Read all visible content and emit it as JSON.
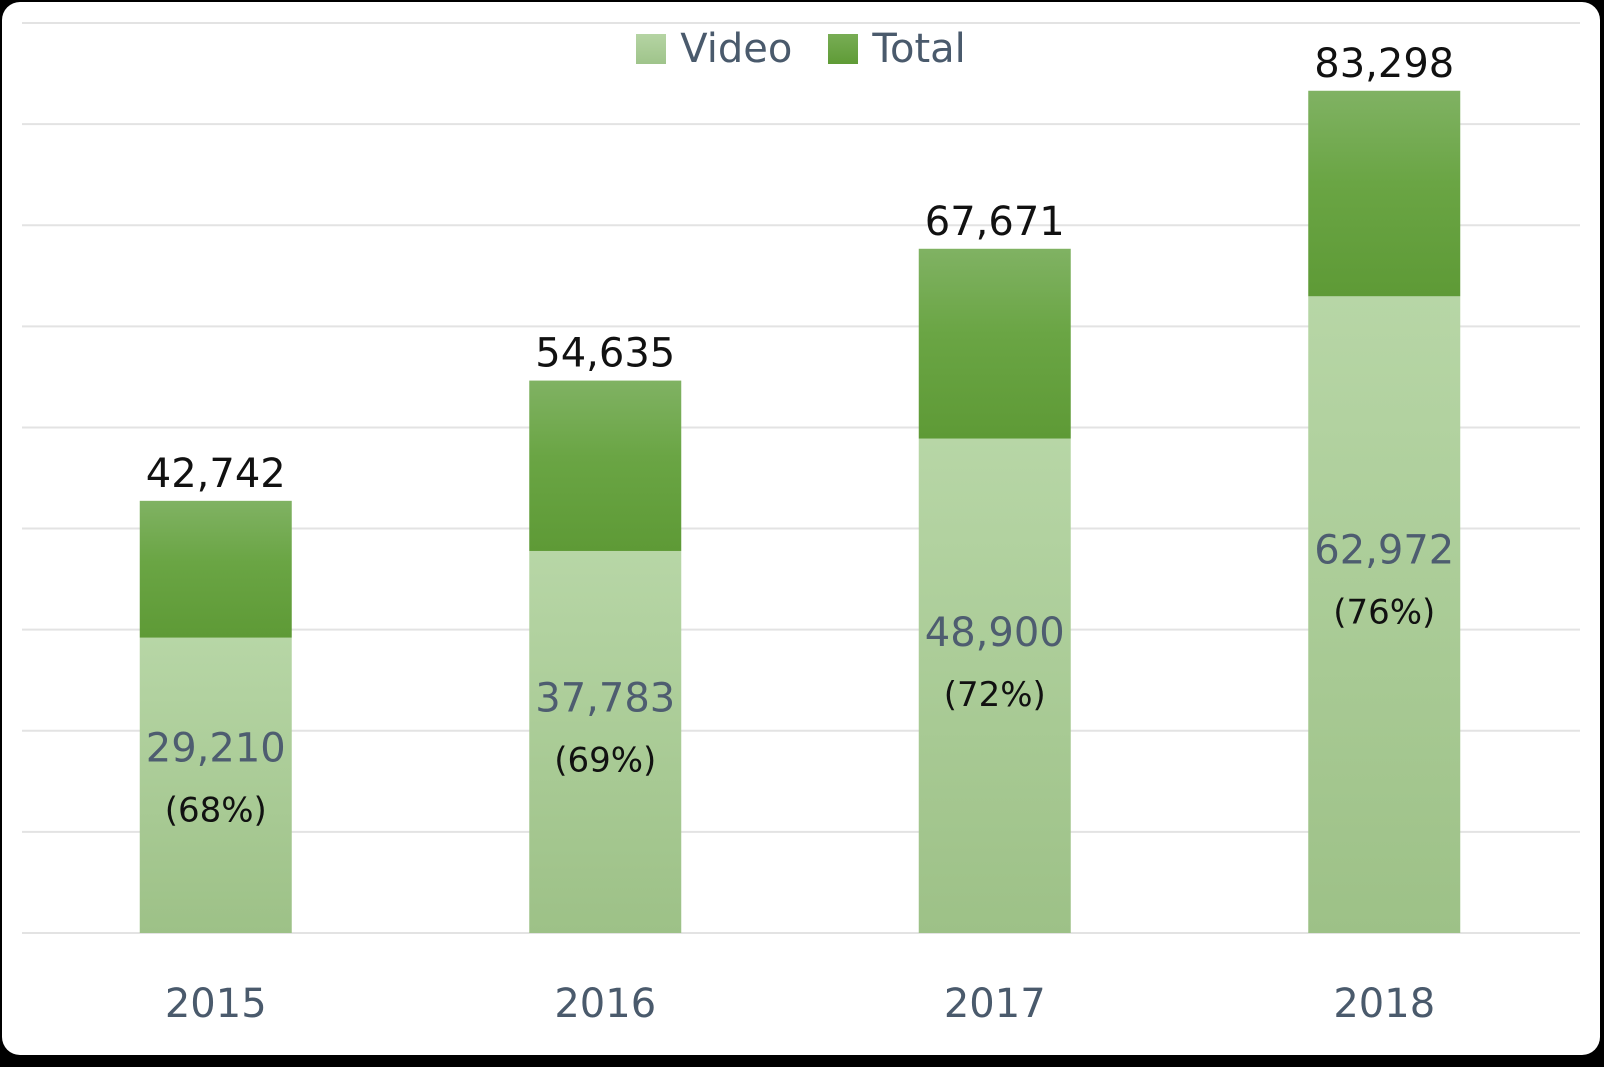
{
  "colors": {
    "video": "#a8cb96",
    "total": "#6ea547",
    "grid": "#e3e3e3",
    "axis_text": "#4a5a6c",
    "value_text": "#111111",
    "inner_value_text": "#4e5d70"
  },
  "chart_data": {
    "type": "bar",
    "stacked": true,
    "categories": [
      "2015",
      "2016",
      "2017",
      "2018"
    ],
    "series": [
      {
        "name": "Video",
        "values": [
          29210,
          37783,
          48900,
          62972
        ],
        "labels": [
          "29,210",
          "37,783",
          "48,900",
          "62,972"
        ],
        "shares": [
          "(68%)",
          "(69%)",
          "(72%)",
          "(76%)"
        ]
      },
      {
        "name": "Total",
        "values": [
          42742,
          54635,
          67671,
          83298
        ],
        "labels": [
          "42,742",
          "54,635",
          "67,671",
          "83,298"
        ]
      }
    ],
    "ylim": [
      0,
      90000
    ],
    "grid": true,
    "legend_position": "top-center"
  }
}
